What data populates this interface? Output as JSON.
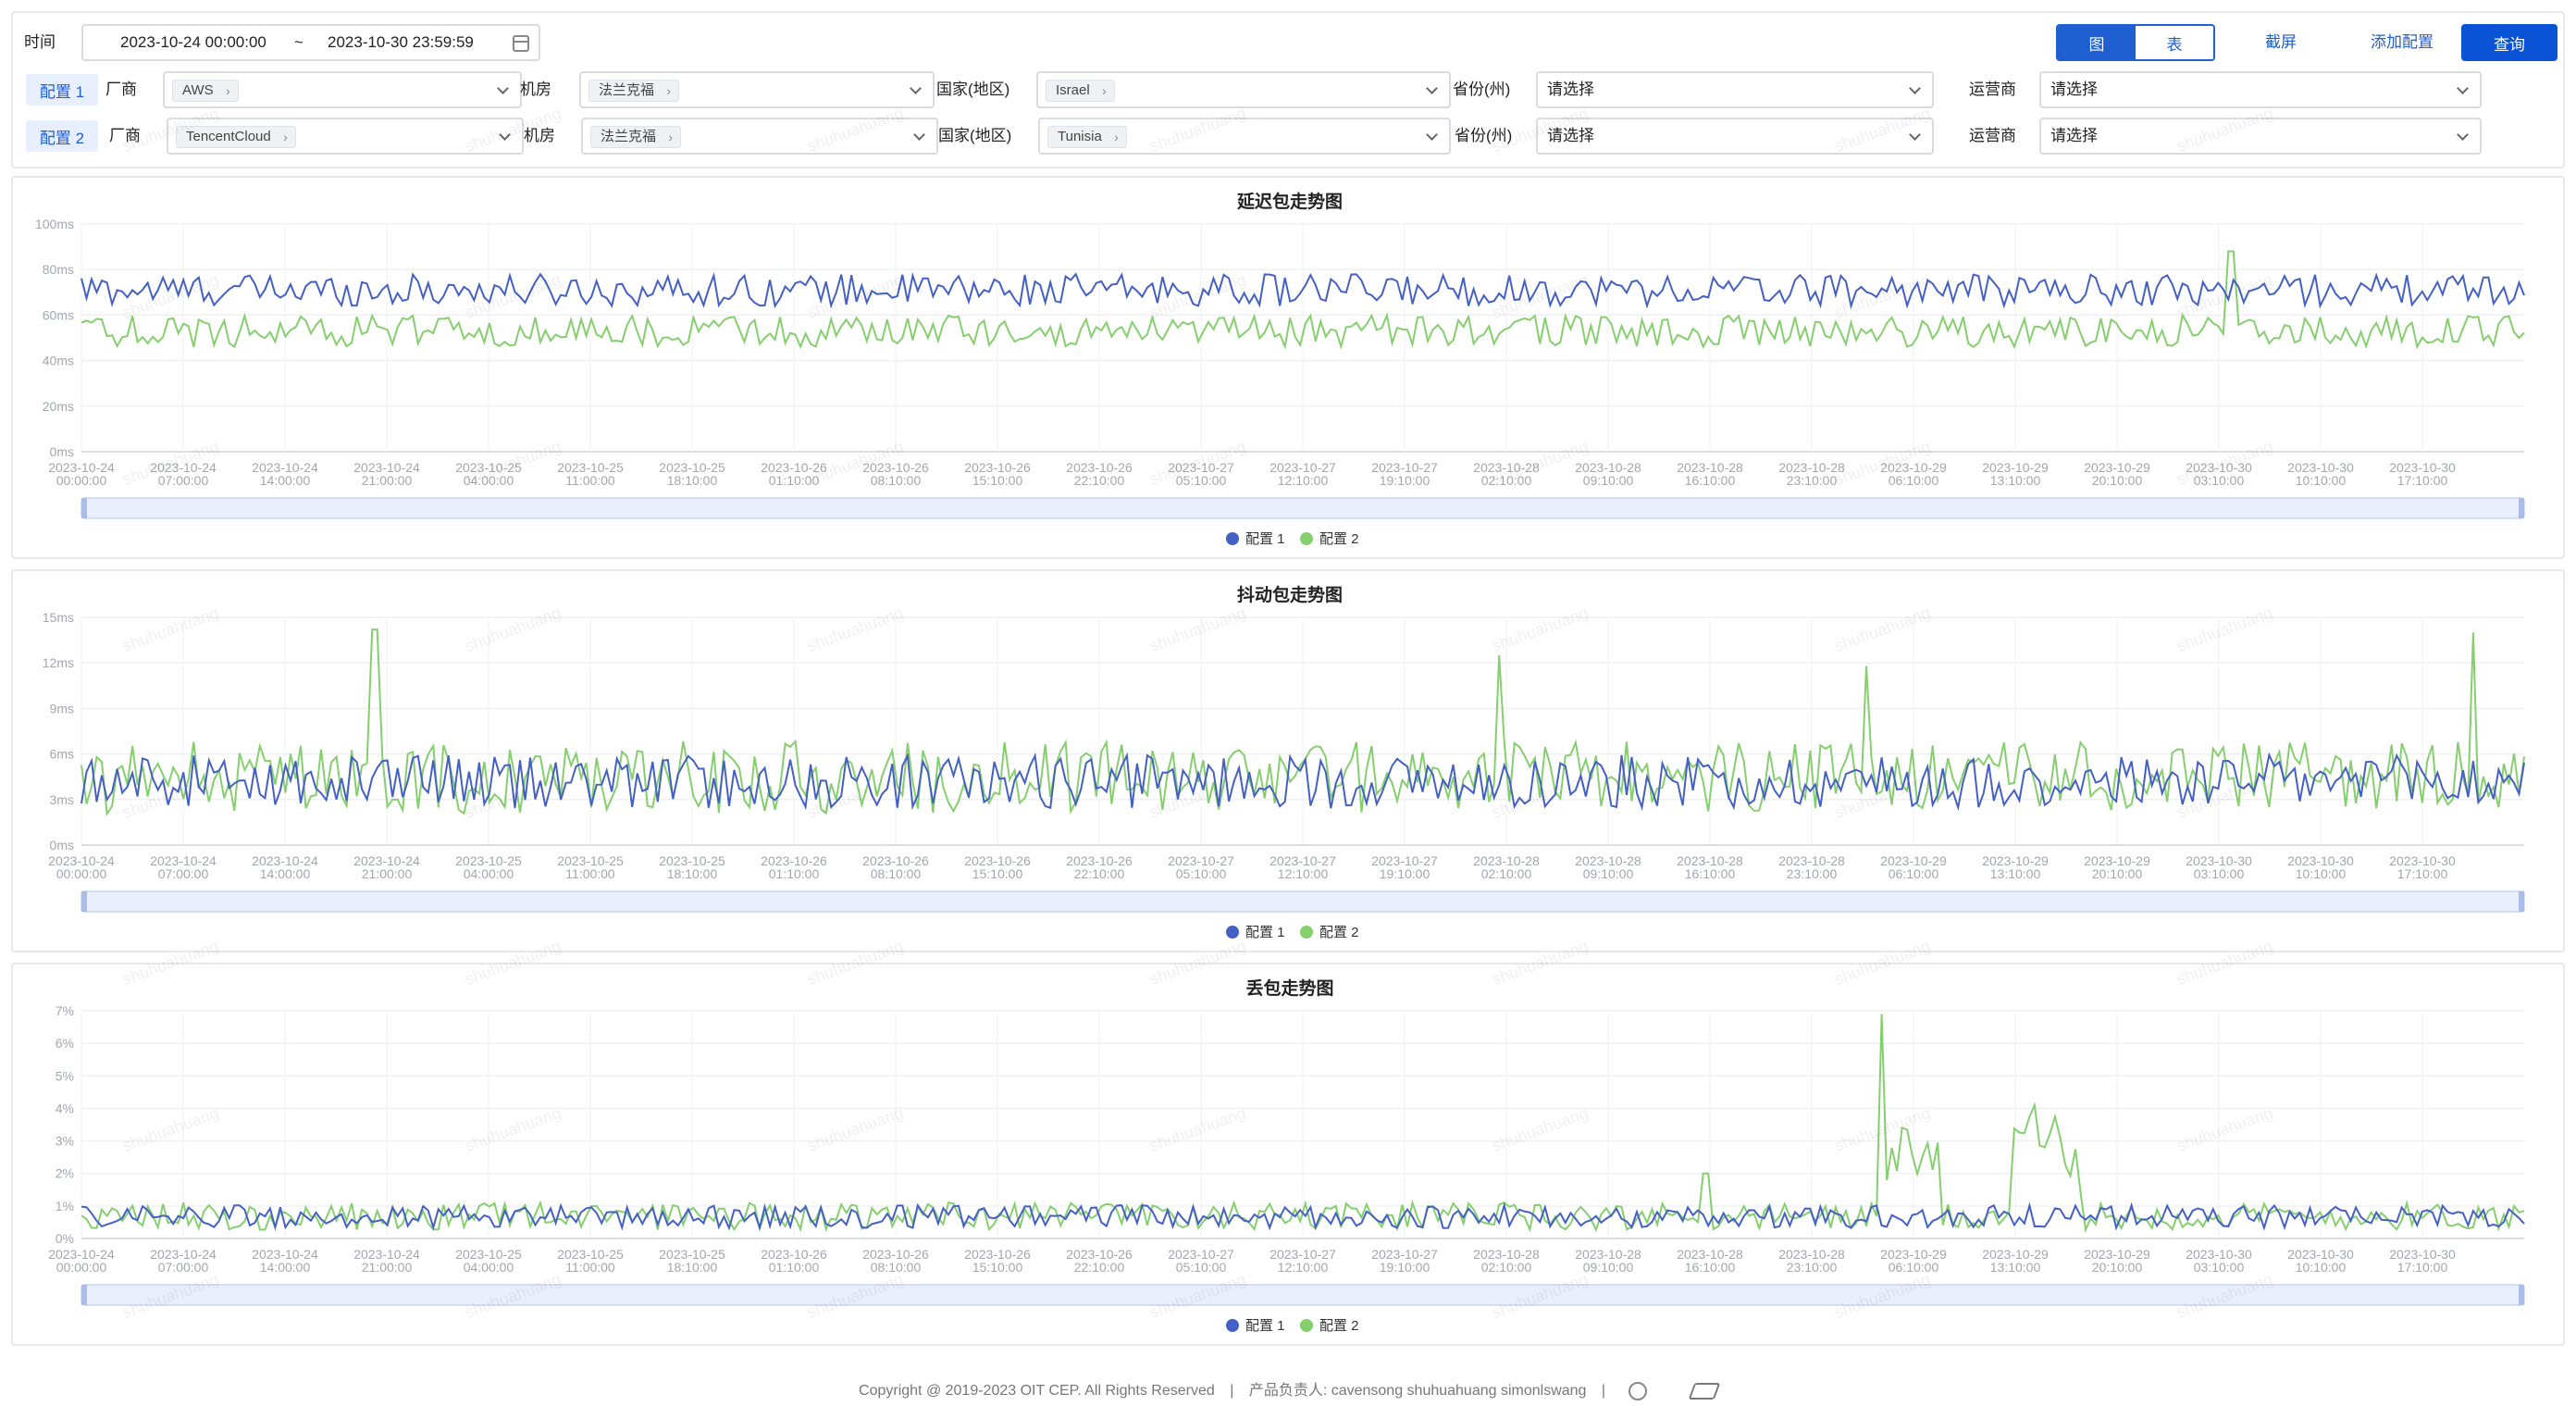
{
  "filters": {
    "time_label": "时间",
    "time_start": "2023-10-24 00:00:00",
    "time_sep": "~",
    "time_end": "2023-10-30 23:59:59",
    "view_chart": "图",
    "view_table": "表",
    "screenshot": "截屏",
    "add_config": "添加配置",
    "query": "查询",
    "labels": {
      "vendor": "厂商",
      "room": "机房",
      "country": "国家(地区)",
      "province": "省份(州)",
      "isp": "运营商"
    },
    "configs": [
      {
        "tag": "配置 1",
        "vendor": "AWS",
        "room": "法兰克福",
        "country": "Israel",
        "province": "请选择",
        "isp": "请选择"
      },
      {
        "tag": "配置 2",
        "vendor": "TencentCloud",
        "room": "法兰克福",
        "country": "Tunisia",
        "province": "请选择",
        "isp": "请选择"
      }
    ]
  },
  "colors": {
    "series1": "#4560c4",
    "series2": "#86cf6e",
    "accent": "#1f5fd1"
  },
  "x_ticks": [
    [
      "2023-10-24",
      "00:00:00"
    ],
    [
      "2023-10-24",
      "07:00:00"
    ],
    [
      "2023-10-24",
      "14:00:00"
    ],
    [
      "2023-10-24",
      "21:00:00"
    ],
    [
      "2023-10-25",
      "04:00:00"
    ],
    [
      "2023-10-25",
      "11:00:00"
    ],
    [
      "2023-10-25",
      "18:10:00"
    ],
    [
      "2023-10-26",
      "01:10:00"
    ],
    [
      "2023-10-26",
      "08:10:00"
    ],
    [
      "2023-10-26",
      "15:10:00"
    ],
    [
      "2023-10-26",
      "22:10:00"
    ],
    [
      "2023-10-27",
      "05:10:00"
    ],
    [
      "2023-10-27",
      "12:10:00"
    ],
    [
      "2023-10-27",
      "19:10:00"
    ],
    [
      "2023-10-28",
      "02:10:00"
    ],
    [
      "2023-10-28",
      "09:10:00"
    ],
    [
      "2023-10-28",
      "16:10:00"
    ],
    [
      "2023-10-28",
      "23:10:00"
    ],
    [
      "2023-10-29",
      "06:10:00"
    ],
    [
      "2023-10-29",
      "13:10:00"
    ],
    [
      "2023-10-29",
      "20:10:00"
    ],
    [
      "2023-10-30",
      "03:10:00"
    ],
    [
      "2023-10-30",
      "10:10:00"
    ],
    [
      "2023-10-30",
      "17:10:00"
    ]
  ],
  "legend": [
    "配置 1",
    "配置 2"
  ],
  "chart_data": [
    {
      "type": "line",
      "title": "延迟包走势图",
      "y_ticks": [
        "0ms",
        "20ms",
        "40ms",
        "60ms",
        "80ms",
        "100ms"
      ],
      "ylim": [
        0,
        100
      ],
      "unit": "ms",
      "series": [
        {
          "name": "配置 1",
          "baseline": 71,
          "noise": 7,
          "spikes": []
        },
        {
          "name": "配置 2",
          "baseline": 53,
          "noise": 7,
          "spikes": [
            [
              0.88,
              88
            ]
          ]
        }
      ]
    },
    {
      "type": "line",
      "title": "抖动包走势图",
      "y_ticks": [
        "0ms",
        "3ms",
        "6ms",
        "9ms",
        "12ms",
        "15ms"
      ],
      "ylim": [
        0,
        15
      ],
      "unit": "ms",
      "series": [
        {
          "name": "配置 1",
          "baseline": 4,
          "noise": 2.2,
          "spikes": []
        },
        {
          "name": "配置 2",
          "baseline": 4.2,
          "noise": 3.0,
          "spikes": [
            [
              0.12,
              14.2
            ],
            [
              0.58,
              12.5
            ],
            [
              0.73,
              11.8
            ],
            [
              0.98,
              14.0
            ]
          ]
        }
      ]
    },
    {
      "type": "line",
      "title": "丢包走势图",
      "y_ticks": [
        "0%",
        "1%",
        "2%",
        "3%",
        "4%",
        "5%",
        "6%",
        "7%"
      ],
      "ylim": [
        0,
        7
      ],
      "unit": "%",
      "series": [
        {
          "name": "配置 1",
          "baseline": 0.6,
          "noise": 0.5,
          "spikes": []
        },
        {
          "name": "配置 2",
          "baseline": 0.6,
          "noise": 0.6,
          "spikes": [
            [
              0.737,
              6.9
            ],
            [
              0.745,
              3.4
            ],
            [
              0.8,
              4.1
            ],
            [
              0.81,
              3.1
            ],
            [
              0.665,
              2.0
            ]
          ]
        }
      ]
    }
  ],
  "footer": {
    "copyright": "Copyright @ 2019-2023  OIT CEP.  All Rights Reserved",
    "divider": "|",
    "owners": "产品负责人: cavensong shuhuahuang simonlswang",
    "divider2": "|"
  },
  "watermark": "shuhuahuang"
}
